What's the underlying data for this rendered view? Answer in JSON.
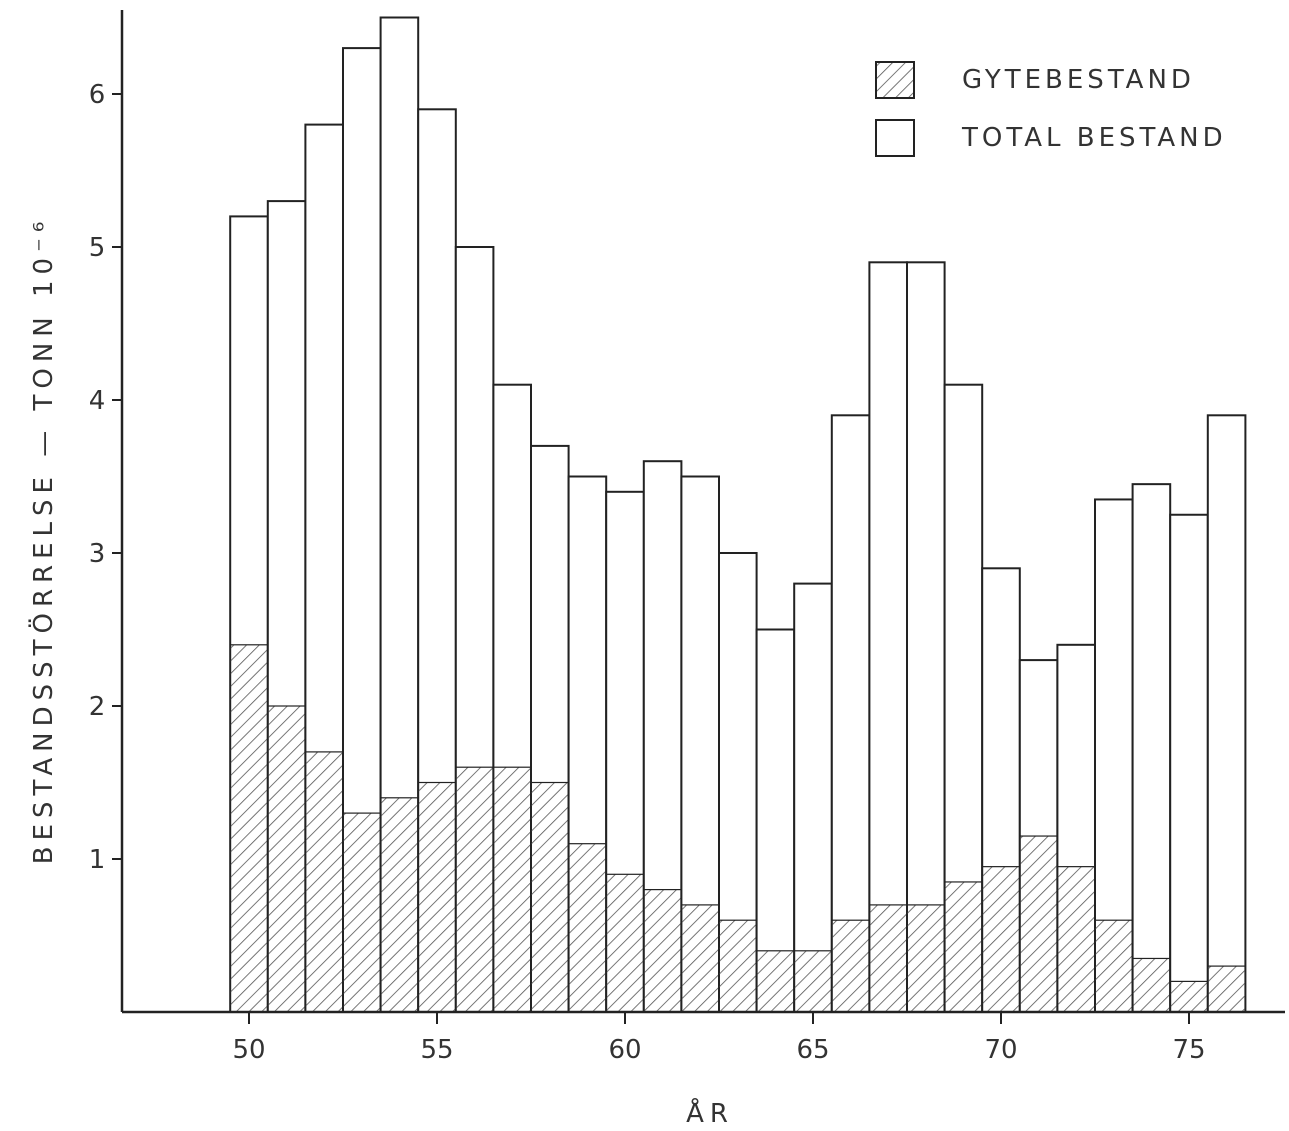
{
  "chart_data": {
    "type": "bar",
    "title": "",
    "xlabel": "ÅR",
    "ylabel": "BESTANDSSTÖRRELSE — TONN 10⁻⁶",
    "xlim": [
      45,
      77
    ],
    "ylim": [
      0,
      6.5
    ],
    "x_ticks": [
      50,
      55,
      60,
      65,
      70,
      75
    ],
    "x_tick_labels": [
      "50",
      "55",
      "60",
      "65",
      "70",
      "75"
    ],
    "y_ticks": [
      1,
      2,
      3,
      4,
      5,
      6
    ],
    "y_tick_labels": [
      "1",
      "2",
      "3",
      "4",
      "5",
      "6"
    ],
    "grid": false,
    "legend_position": "top-right",
    "x": [
      50,
      51,
      52,
      53,
      54,
      55,
      56,
      57,
      58,
      59,
      60,
      61,
      62,
      63,
      64,
      65,
      66,
      67,
      68,
      69,
      70,
      71,
      72,
      73,
      74,
      75,
      76
    ],
    "series": [
      {
        "name": "TOTAL BESTAND",
        "pattern": "plain",
        "values": [
          5.2,
          5.3,
          5.8,
          6.3,
          6.5,
          5.9,
          5.0,
          4.1,
          3.7,
          3.5,
          3.4,
          3.6,
          3.5,
          3.0,
          2.5,
          2.8,
          3.9,
          4.9,
          4.9,
          4.1,
          2.9,
          2.3,
          2.4,
          3.35,
          3.45,
          3.25,
          3.9
        ]
      },
      {
        "name": "GYTEBESTAND",
        "pattern": "hatched",
        "values": [
          2.4,
          2.0,
          1.7,
          1.3,
          1.4,
          1.5,
          1.6,
          1.6,
          1.5,
          1.1,
          0.9,
          0.8,
          0.7,
          0.6,
          0.4,
          0.4,
          0.6,
          0.7,
          0.7,
          0.85,
          0.95,
          1.15,
          0.95,
          0.6,
          0.35,
          0.2,
          0.3
        ]
      }
    ]
  },
  "colors": {
    "ink": "#222222",
    "hatch": "#555555",
    "background": "#ffffff"
  }
}
